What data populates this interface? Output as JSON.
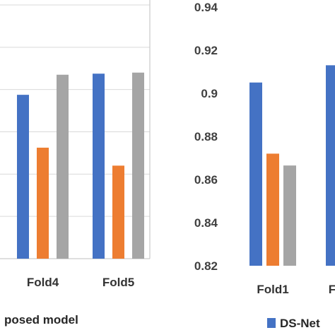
{
  "colors": {
    "blue": "#4472C4",
    "orange": "#ED7D31",
    "gray": "#A5A5A5"
  },
  "chart_data": [
    {
      "type": "bar",
      "categories": [
        "Fold4",
        "Fold5"
      ],
      "series": [
        {
          "values": [
            0.8975,
            0.9075
          ],
          "color": "#4472C4"
        },
        {
          "values": [
            0.8725,
            0.864
          ],
          "color": "#ED7D31"
        },
        {
          "values": [
            0.907,
            0.908
          ],
          "color": "#A5A5A5"
        }
      ],
      "ylim": [
        0.82,
        0.94
      ],
      "grid": true,
      "legend_fragment": "posed model"
    },
    {
      "type": "bar",
      "categories": [
        "Fold1",
        "F"
      ],
      "series": [
        {
          "name": "DS-Net",
          "values": [
            0.905,
            0.913
          ],
          "color": "#4472C4"
        },
        {
          "values": [
            0.872,
            null
          ],
          "color": "#ED7D31"
        },
        {
          "values": [
            0.8665,
            null
          ],
          "color": "#A5A5A5"
        }
      ],
      "ylim": [
        0.82,
        0.94
      ],
      "yticks": [
        "0.94",
        "0.92",
        "0.9",
        "0.88",
        "0.86",
        "0.84",
        "0.82"
      ],
      "grid": false,
      "legend": [
        "DS-Net"
      ]
    }
  ]
}
